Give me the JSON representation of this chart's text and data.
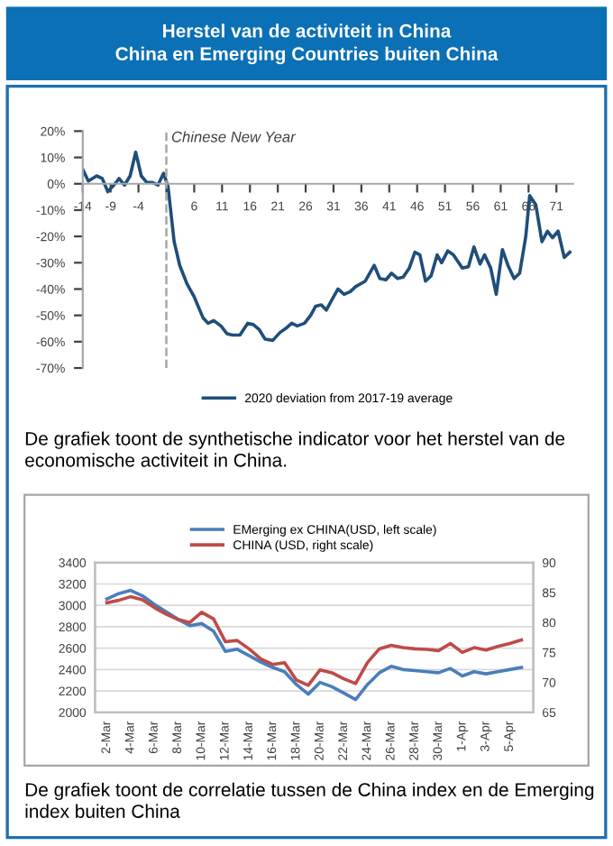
{
  "chart_data": [
    {
      "type": "line",
      "title": "Herstel van de activiteit in China\nChina en Emerging Countries buiten China",
      "x": [
        -14,
        -13,
        -11.5,
        -10.5,
        -9.5,
        -8,
        -7.5,
        -6.5,
        -5.5,
        -4.5,
        -3.5,
        -2.5,
        -1.5,
        -0.5,
        0.5,
        1.3,
        2.4,
        3.4,
        4.7,
        6,
        7.6,
        8.5,
        9.5,
        10.8,
        11.9,
        12.9,
        14.2,
        15.6,
        16.6,
        17.7,
        18.7,
        20.1,
        21.4,
        22.4,
        23.5,
        24.5,
        25.8,
        26.9,
        27.8,
        28.8,
        29.7,
        31,
        31.8,
        32.9,
        34,
        35,
        36.7,
        38.3,
        39.3,
        40.4,
        41.4,
        42.5,
        43.5,
        44.6,
        45.6,
        46.5,
        47.5,
        48.5,
        49.6,
        50.4,
        51.5,
        52.5,
        54.1,
        55.2,
        56.2,
        57.3,
        58.1,
        59.2,
        60.2,
        61.3,
        62.3,
        63.4,
        64.4,
        65.5,
        66.2,
        67.3,
        68.4,
        69.4,
        70.3,
        71.3,
        72.4,
        73.4
      ],
      "series": [
        {
          "name": "2020 deviation from 2017-19 average",
          "color": "#1f4e79",
          "values": [
            5.5,
            1,
            3,
            2,
            -3,
            0.5,
            2,
            -0.5,
            3,
            12,
            3,
            0.5,
            0.5,
            -0.5,
            4,
            -1,
            -22,
            -31,
            -38,
            -43,
            -51,
            -53,
            -52,
            -54,
            -57,
            -57.5,
            -57.5,
            -53,
            -53.5,
            -55.5,
            -59,
            -59.5,
            -56.5,
            -55,
            -53,
            -54,
            -53,
            -50,
            -46.5,
            -46,
            -48,
            -43,
            -40,
            -42,
            -41,
            -39,
            -37,
            -31,
            -36,
            -36.5,
            -34,
            -36,
            -35.5,
            -32,
            -26,
            -27,
            -37,
            -35,
            -27,
            -30,
            -25.5,
            -27,
            -32,
            -31.5,
            -24,
            -30.5,
            -27,
            -32,
            -42,
            -25,
            -31,
            -36,
            -34,
            -20,
            -4.5,
            -8,
            -22,
            -18,
            -20.5,
            -18,
            -28,
            -26
          ]
        }
      ],
      "xlim": [
        -14,
        74
      ],
      "ylim": [
        -70,
        20
      ],
      "xticks": [
        -14,
        -9,
        -4,
        {
          "value": 1,
          "label": null
        },
        6,
        11,
        16,
        21,
        26,
        31,
        36,
        41,
        46,
        51,
        56,
        61,
        66,
        71
      ],
      "yticks": [
        {
          "value": 20,
          "label": "20%"
        },
        {
          "value": 10,
          "label": "10%"
        },
        {
          "value": 0,
          "label": "0%"
        },
        {
          "value": -10,
          "label": "-10%"
        },
        {
          "value": -20,
          "label": "-20%"
        },
        {
          "value": -30,
          "label": "-30%"
        },
        {
          "value": -40,
          "label": "-40%"
        },
        {
          "value": -50,
          "label": "-50%"
        },
        {
          "value": -60,
          "label": "-60%"
        },
        {
          "value": -70,
          "label": "-70%"
        }
      ],
      "ref_lines": [
        {
          "axis": "x",
          "value": 1,
          "label": "Chinese New Year",
          "color": "#a6a6a6",
          "line_style": "dashed"
        }
      ],
      "legend": "bottom",
      "annotations": [
        "De grafiek toont de synthetische indicator voor het herstel van de economische activiteit in China."
      ]
    },
    {
      "type": "line",
      "categories": [
        "2-Mar",
        null,
        "4-Mar",
        null,
        "6-Mar",
        null,
        "8-Mar",
        null,
        "10-Mar",
        null,
        "12-Mar",
        null,
        "14-Mar",
        null,
        "16-Mar",
        null,
        "18-Mar",
        null,
        "20-Mar",
        null,
        "22-Mar",
        null,
        "24-Mar",
        null,
        "26-Mar",
        null,
        "28-Mar",
        null,
        "30-Mar",
        null,
        "1-Apr",
        null,
        "3-Apr",
        null,
        "5-Apr",
        null
      ],
      "series": [
        {
          "name": "EMerging ex CHINA(USD, left scale)",
          "color": "#4a7ebb",
          "values": [
            3060,
            3110,
            3140,
            3090,
            3010,
            2940,
            2870,
            2810,
            2830,
            2760,
            2570,
            2590,
            2530,
            2470,
            2420,
            2380,
            2260,
            2170,
            2280,
            2240,
            2180,
            2120,
            2260,
            2370,
            2430,
            2400,
            2390,
            2380,
            2370,
            2410,
            2340,
            2380,
            2360,
            2380,
            2400,
            2420
          ]
        },
        {
          "name": "CHINA (USD, right scale)",
          "color": "#be4b48",
          "axis": "y2",
          "values": [
            83.3,
            83.7,
            84.3,
            83.8,
            82.5,
            81.4,
            80.5,
            80.0,
            81.7,
            80.6,
            76.8,
            77.0,
            75.6,
            73.9,
            73.0,
            73.3,
            70.4,
            69.5,
            72.1,
            71.6,
            70.6,
            69.8,
            73.3,
            75.6,
            76.2,
            75.8,
            75.6,
            75.5,
            75.3,
            76.5,
            75.0,
            75.8,
            75.4,
            76.0,
            76.5,
            77.1
          ]
        }
      ],
      "ylim": [
        2000,
        3400
      ],
      "yticks": [
        2000,
        2200,
        2400,
        2600,
        2800,
        3000,
        3200,
        3400
      ],
      "y2lim": [
        65,
        90
      ],
      "y2ticks": [
        65,
        70,
        75,
        80,
        85,
        90
      ],
      "grid": "y",
      "legend": "top",
      "annotations": [
        "De grafiek toont de correlatie tussen de China index en de Emerging index buiten China"
      ]
    }
  ]
}
